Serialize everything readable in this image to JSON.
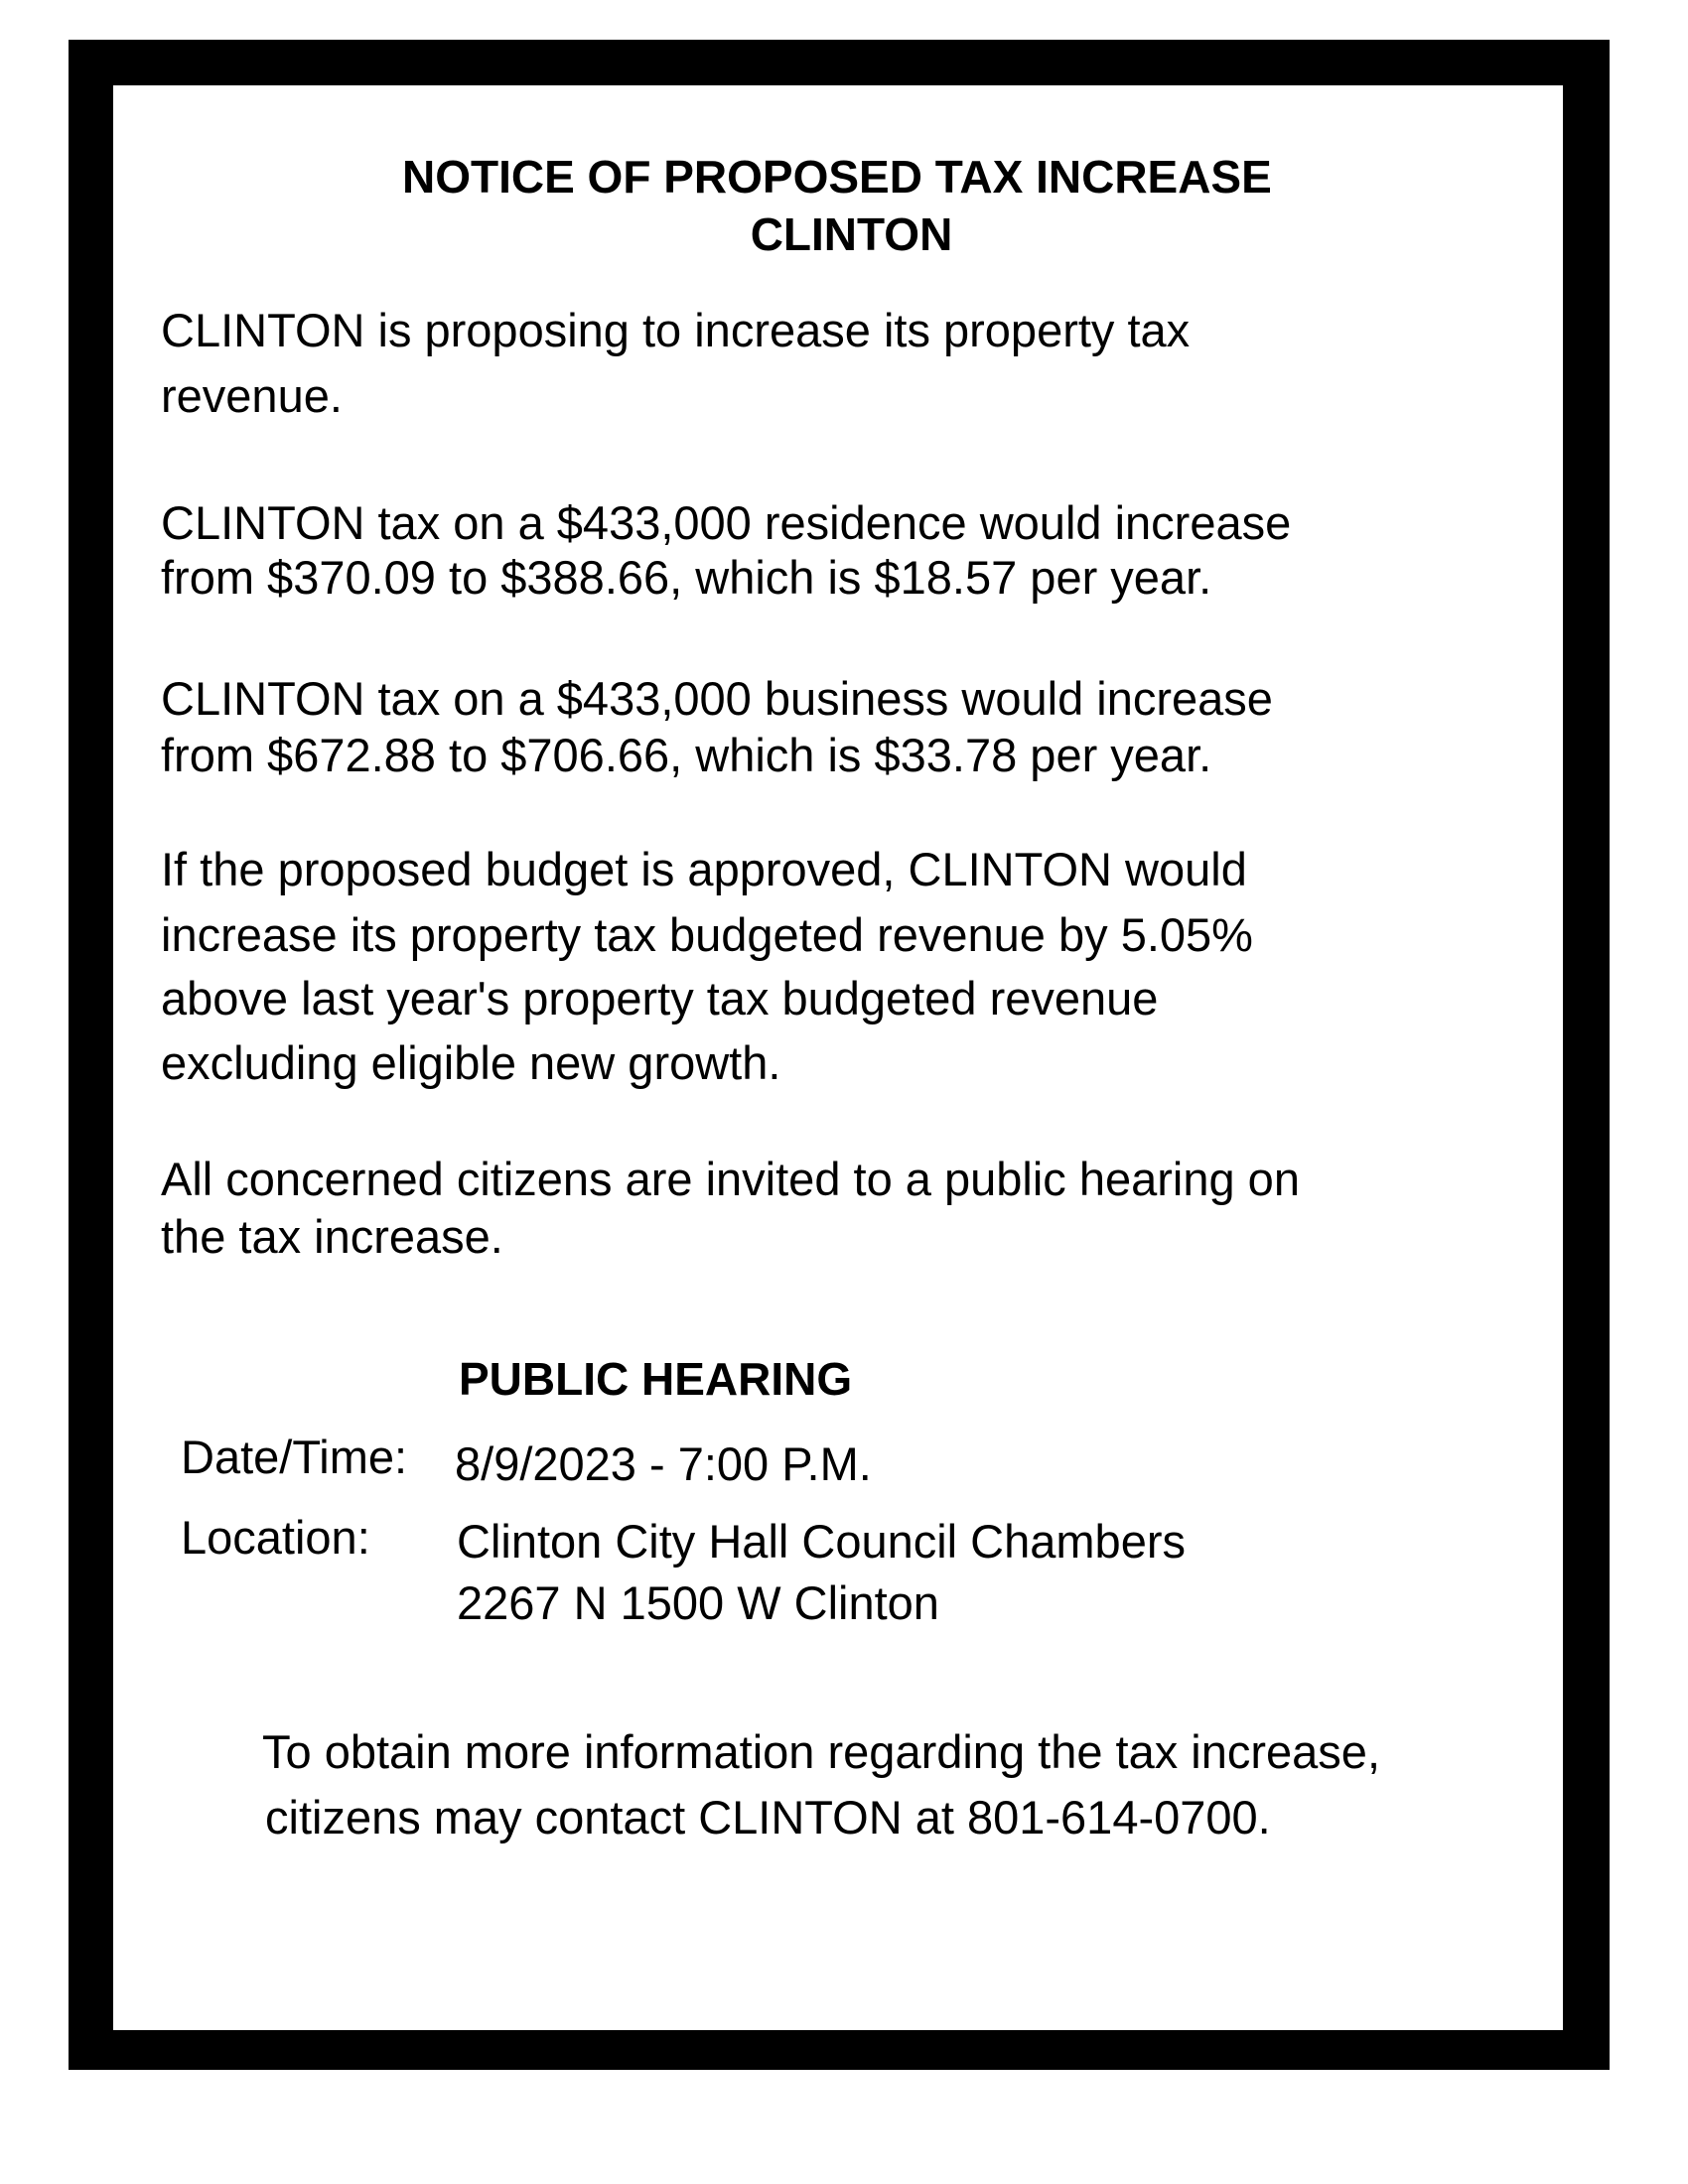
{
  "title": [
    "NOTICE OF PROPOSED TAX INCREASE",
    "CLINTON"
  ],
  "paragraphs": [
    [
      "CLINTON is proposing to increase its property tax",
      "revenue."
    ],
    [
      "CLINTON tax on a $433,000 residence would increase",
      "from $370.09 to $388.66, which is $18.57 per year."
    ],
    [
      "CLINTON tax on a $433,000 business would increase",
      "from $672.88 to $706.66, which is $33.78 per year."
    ],
    [
      "If the proposed budget is approved, CLINTON would",
      "increase its property tax budgeted revenue by 5.05%",
      "above last year's property tax budgeted revenue",
      "excluding eligible new growth."
    ],
    [
      "All concerned citizens are invited to a public hearing on",
      "the tax increase."
    ]
  ],
  "hearing": {
    "heading": "PUBLIC HEARING",
    "date_label": "Date/Time:",
    "date_value": "8/9/2023 - 7:00 P.M.",
    "location_label": "Location:",
    "location_lines": [
      "Clinton City Hall Council Chambers",
      "2267 N 1500 W Clinton"
    ]
  },
  "footer": [
    "To obtain more information regarding the tax increase,",
    "citizens may contact CLINTON at 801-614-0700."
  ]
}
